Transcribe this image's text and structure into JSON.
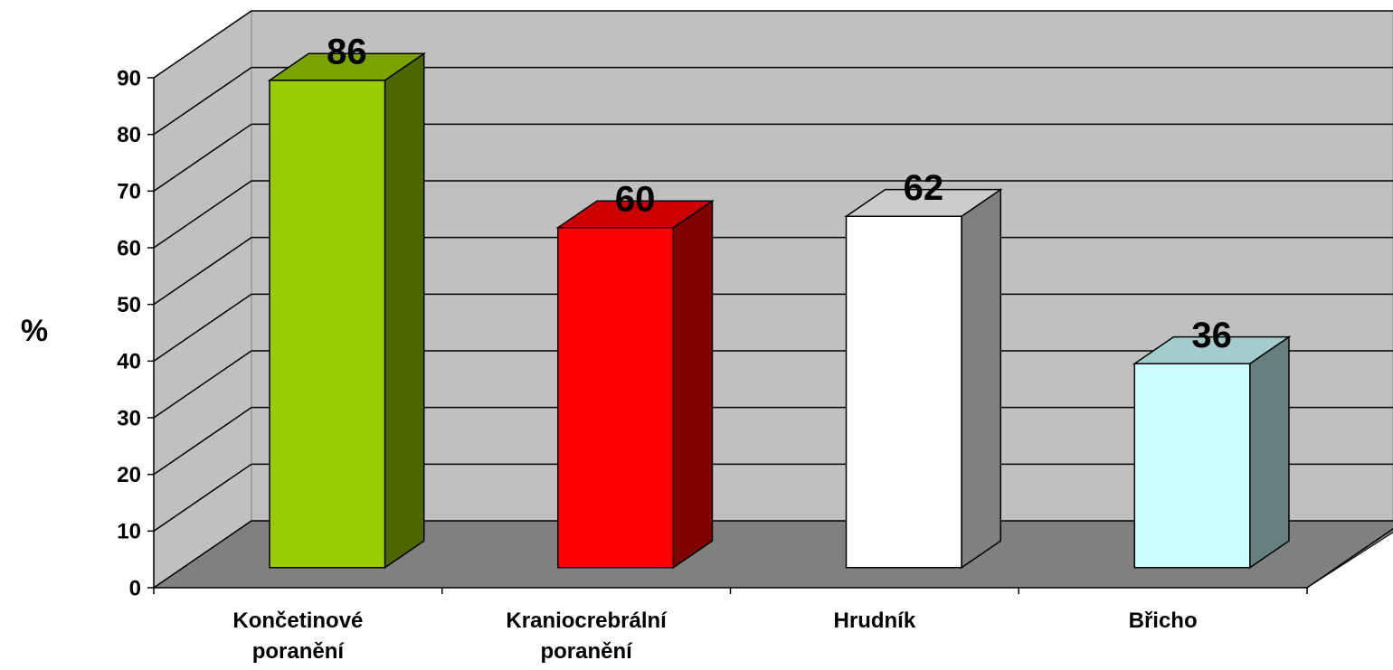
{
  "chart_data": {
    "type": "bar3d",
    "y_label": "%",
    "categories": [
      "Končetinové poranění",
      "Kraniocrebrální poranění",
      "Hrudník",
      "Břicho"
    ],
    "values": [
      86,
      60,
      62,
      36
    ],
    "colors": [
      "#99cc00",
      "#ff0000",
      "#ffffff",
      "#ccffff"
    ],
    "ylim": [
      0,
      90
    ],
    "yticks": [
      0,
      10,
      20,
      30,
      40,
      50,
      60,
      70,
      80,
      90
    ],
    "grid": true
  }
}
